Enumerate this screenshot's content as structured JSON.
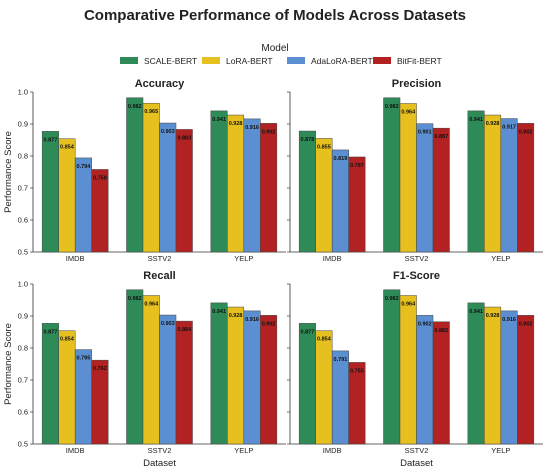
{
  "figure": {
    "title": "Comparative Performance of Models Across Datasets",
    "legend_title": "Model",
    "ylabel": "Performance Score",
    "xlabel": "Dataset"
  },
  "colors": {
    "SCALE-BERT": "#2e8b57",
    "LoRA-BERT": "#e6c01e",
    "AdaLoRA-BERT": "#5b8fd1",
    "BitFit-BERT": "#b22222"
  },
  "chart_data": [
    {
      "type": "bar",
      "title": "Accuracy",
      "categories": [
        "IMDB",
        "SSTV2",
        "YELP"
      ],
      "ylim": [
        0.5,
        1.0
      ],
      "yticks": [
        0.5,
        0.6,
        0.7,
        0.8,
        0.9,
        1.0
      ],
      "ylabel": "Performance Score",
      "xlabel": "",
      "series": [
        {
          "name": "SCALE-BERT",
          "values": [
            0.877,
            0.982,
            0.941
          ]
        },
        {
          "name": "LoRA-BERT",
          "values": [
            0.854,
            0.965,
            0.928
          ]
        },
        {
          "name": "AdaLoRA-BERT",
          "values": [
            0.794,
            0.903,
            0.916
          ]
        },
        {
          "name": "BitFit-BERT",
          "values": [
            0.758,
            0.883,
            0.902
          ]
        }
      ],
      "labels": [
        [
          "0.877",
          "0.982",
          "0.941"
        ],
        [
          "0.854",
          "0.965",
          "0.928"
        ],
        [
          "0.794",
          "0.903",
          "0.916"
        ],
        [
          "0.758",
          "0.883",
          "0.902"
        ]
      ]
    },
    {
      "type": "bar",
      "title": "Precision",
      "categories": [
        "IMDB",
        "SSTV2",
        "YELP"
      ],
      "ylim": [
        0.5,
        1.0
      ],
      "yticks": [
        0.5,
        0.6,
        0.7,
        0.8,
        0.9,
        1.0
      ],
      "ylabel": "",
      "xlabel": "",
      "series": [
        {
          "name": "SCALE-BERT",
          "values": [
            0.878,
            0.982,
            0.941
          ]
        },
        {
          "name": "LoRA-BERT",
          "values": [
            0.855,
            0.964,
            0.928
          ]
        },
        {
          "name": "AdaLoRA-BERT",
          "values": [
            0.819,
            0.901,
            0.917
          ]
        },
        {
          "name": "BitFit-BERT",
          "values": [
            0.797,
            0.887,
            0.902
          ]
        }
      ],
      "labels": [
        [
          "0.878",
          "0.982",
          "0.941"
        ],
        [
          "0.855",
          "0.964",
          "0.928"
        ],
        [
          "0.819",
          "0.901",
          "0.917"
        ],
        [
          "0.797",
          "0.887",
          "0.902"
        ]
      ]
    },
    {
      "type": "bar",
      "title": "Recall",
      "categories": [
        "IMDB",
        "SSTV2",
        "YELP"
      ],
      "ylim": [
        0.5,
        1.0
      ],
      "yticks": [
        0.5,
        0.6,
        0.7,
        0.8,
        0.9,
        1.0
      ],
      "ylabel": "Performance Score",
      "xlabel": "Dataset",
      "series": [
        {
          "name": "SCALE-BERT",
          "values": [
            0.877,
            0.982,
            0.941
          ]
        },
        {
          "name": "LoRA-BERT",
          "values": [
            0.854,
            0.964,
            0.928
          ]
        },
        {
          "name": "AdaLoRA-BERT",
          "values": [
            0.795,
            0.903,
            0.916
          ]
        },
        {
          "name": "BitFit-BERT",
          "values": [
            0.762,
            0.884,
            0.902
          ]
        }
      ],
      "labels": [
        [
          "0.877",
          "0.982",
          "0.941"
        ],
        [
          "0.854",
          "0.964",
          "0.928"
        ],
        [
          "0.795",
          "0.903",
          "0.916"
        ],
        [
          "0.762",
          "0.884",
          "0.902"
        ]
      ]
    },
    {
      "type": "bar",
      "title": "F1-Score",
      "categories": [
        "IMDB",
        "SSTV2",
        "YELP"
      ],
      "ylim": [
        0.5,
        1.0
      ],
      "yticks": [
        0.5,
        0.6,
        0.7,
        0.8,
        0.9,
        1.0
      ],
      "ylabel": "",
      "xlabel": "Dataset",
      "series": [
        {
          "name": "SCALE-BERT",
          "values": [
            0.877,
            0.982,
            0.941
          ]
        },
        {
          "name": "LoRA-BERT",
          "values": [
            0.854,
            0.964,
            0.928
          ]
        },
        {
          "name": "AdaLoRA-BERT",
          "values": [
            0.791,
            0.902,
            0.916
          ]
        },
        {
          "name": "BitFit-BERT",
          "values": [
            0.755,
            0.882,
            0.902
          ]
        }
      ],
      "labels": [
        [
          "0.877",
          "0.982",
          "0.941"
        ],
        [
          "0.854",
          "0.964",
          "0.928"
        ],
        [
          "0.791",
          "0.902",
          "0.916"
        ],
        [
          "0.755",
          "0.882",
          "0.902"
        ]
      ]
    }
  ]
}
